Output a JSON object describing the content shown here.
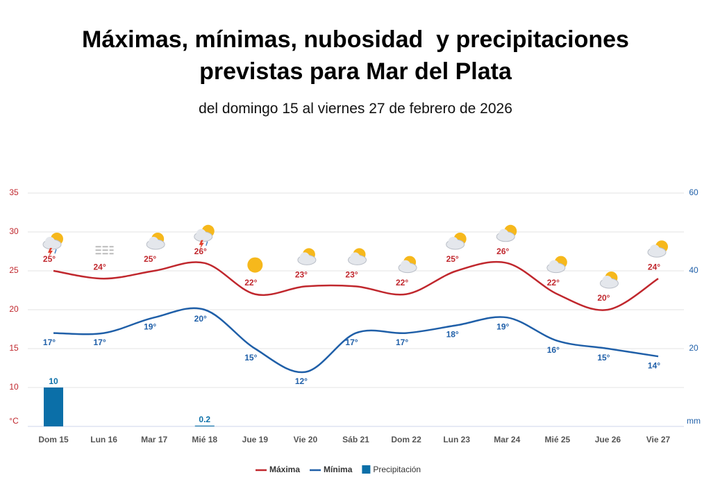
{
  "chart_data": {
    "type": "line",
    "title": "Máximas, mínimas, nubosidad  y precipitaciones previstas para Mar del Plata",
    "subtitle": "del domingo 15 al viernes 27 de febrero de 2026",
    "categories": [
      "Dom 15",
      "Lun 16",
      "Mar 17",
      "Mié 18",
      "Jue 19",
      "Vie 20",
      "Sáb 21",
      "Dom 22",
      "Lun 23",
      "Mar 24",
      "Mié 25",
      "Jue 26",
      "Vie 27"
    ],
    "series": [
      {
        "name": "Máxima",
        "color": "#c0272d",
        "values": [
          25,
          24,
          25,
          26,
          22,
          23,
          23,
          22,
          25,
          26,
          22,
          20,
          24
        ],
        "value_labels": [
          "25°",
          "24°",
          "25°",
          "26°",
          "22°",
          "23°",
          "23°",
          "22°",
          "25°",
          "26°",
          "22°",
          "20°",
          "24°"
        ]
      },
      {
        "name": "Mínima",
        "color": "#1f5fa8",
        "values": [
          17,
          17,
          19,
          20,
          15,
          12,
          17,
          17,
          18,
          19,
          16,
          15,
          14
        ],
        "value_labels": [
          "17°",
          "17°",
          "19°",
          "20°",
          "15°",
          "12°",
          "17°",
          "17°",
          "18°",
          "19°",
          "16°",
          "15°",
          "14°"
        ]
      },
      {
        "name": "Precipitación",
        "type": "bar",
        "axis": "y2",
        "color": "#0b6fa8",
        "values": [
          10,
          null,
          null,
          0.2,
          null,
          null,
          null,
          null,
          null,
          null,
          null,
          null,
          null
        ]
      }
    ],
    "y_label": "°C",
    "y2_label": "mm",
    "ylim": [
      5,
      35
    ],
    "yticks": [
      10,
      15,
      20,
      25,
      30,
      35
    ],
    "y2lim": [
      0,
      60
    ],
    "y2ticks": [
      20,
      40,
      60
    ],
    "grid": true
  }
}
